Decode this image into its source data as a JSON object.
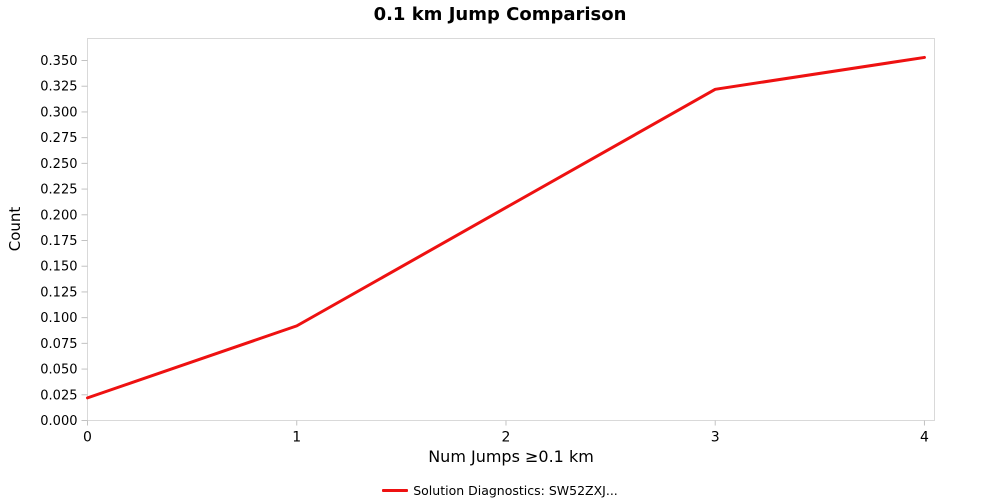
{
  "chart_data": {
    "type": "line",
    "title": "0.1 km Jump Comparison",
    "xlabel": "Num Jumps ≥0.1 km",
    "ylabel": "Count",
    "x": [
      0,
      1,
      2,
      3,
      4
    ],
    "series": [
      {
        "name": "Solution Diagnostics: SW52ZXJ...",
        "values": [
          0.022,
          0.092,
          0.207,
          0.322,
          0.353
        ],
        "color": "#ee1111"
      }
    ],
    "xlim": [
      0,
      4.048
    ],
    "ylim": [
      0,
      0.3714
    ],
    "x_ticks": [
      "0",
      "1",
      "2",
      "3",
      "4"
    ],
    "y_ticks": [
      "0.000",
      "0.025",
      "0.050",
      "0.075",
      "0.100",
      "0.125",
      "0.150",
      "0.175",
      "0.200",
      "0.225",
      "0.250",
      "0.275",
      "0.300",
      "0.325",
      "0.350"
    ],
    "grid": false,
    "legend_position": "bottom",
    "frame_color": "#d9d9d9",
    "tick_color": "#c2c2c2",
    "line_width": 3
  },
  "legend": {
    "label": "Solution Diagnostics: SW52ZXJ..."
  }
}
